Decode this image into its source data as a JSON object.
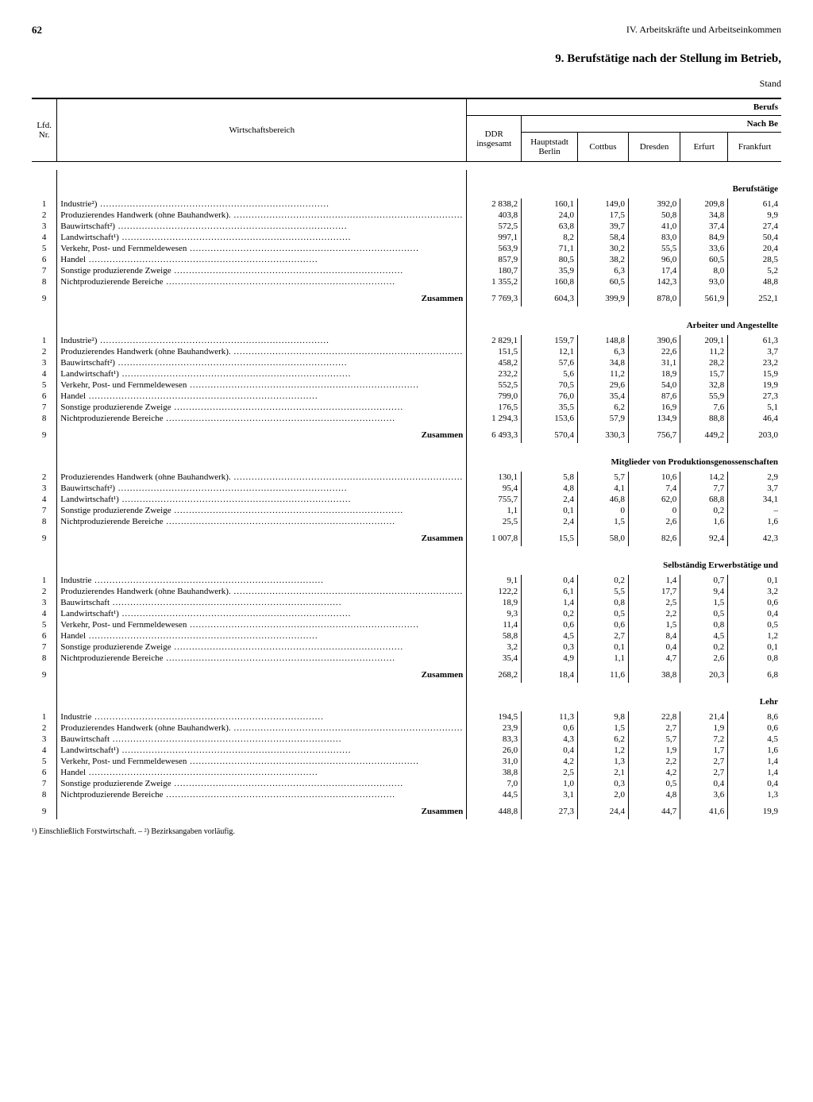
{
  "page_number": "62",
  "section_header": "IV. Arbeitskräfte und Arbeitseinkommen",
  "title": "9. Berufstätige nach der Stellung im Betrieb,",
  "stand": "Stand",
  "top_right_1": "Berufs",
  "top_right_2": "Nach Be",
  "col_headers": {
    "nr": "Lfd.\nNr.",
    "bereich": "Wirtschaftsbereich",
    "ddr": "DDR\ninsgesamt",
    "berlin": "Hauptstadt\nBerlin",
    "cottbus": "Cottbus",
    "dresden": "Dresden",
    "erfurt": "Erfurt",
    "frankfurt": "Frankfurt"
  },
  "row_labels": [
    "Industrie²)",
    "Produzierendes Handwerk (ohne Bauhandwerk).",
    "Bauwirtschaft²)",
    "Landwirtschaft¹)",
    "Verkehr, Post- und Fernmeldewesen",
    "Handel",
    "Sonstige produzierende Zweige",
    "Nichtproduzierende Bereiche"
  ],
  "row_labels_plain": [
    "Industrie",
    "Produzierendes Handwerk (ohne Bauhandwerk).",
    "Bauwirtschaft",
    "Landwirtschaft¹)",
    "Verkehr, Post- und Fernmeldewesen",
    "Handel",
    "Sonstige produzierende Zweige",
    "Nichtproduzierende Bereiche"
  ],
  "zusammen": "Zusammen",
  "sections": [
    {
      "title": "Berufstätige",
      "nrs": [
        "1",
        "2",
        "3",
        "4",
        "5",
        "6",
        "7",
        "8"
      ],
      "use_plain": false,
      "rows": [
        [
          "2 838,2",
          "160,1",
          "149,0",
          "392,0",
          "209,8",
          "61,4"
        ],
        [
          "403,8",
          "24,0",
          "17,5",
          "50,8",
          "34,8",
          "9,9"
        ],
        [
          "572,5",
          "63,8",
          "39,7",
          "41,0",
          "37,4",
          "27,4"
        ],
        [
          "997,1",
          "8,2",
          "58,4",
          "83,0",
          "84,9",
          "50,4"
        ],
        [
          "563,9",
          "71,1",
          "30,2",
          "55,5",
          "33,6",
          "20,4"
        ],
        [
          "857,9",
          "80,5",
          "38,2",
          "96,0",
          "60,5",
          "28,5"
        ],
        [
          "180,7",
          "35,9",
          "6,3",
          "17,4",
          "8,0",
          "5,2"
        ],
        [
          "1 355,2",
          "160,8",
          "60,5",
          "142,3",
          "93,0",
          "48,8"
        ]
      ],
      "sum": [
        "7 769,3",
        "604,3",
        "399,9",
        "878,0",
        "561,9",
        "252,1"
      ]
    },
    {
      "title": "Arbeiter und Angestellte",
      "nrs": [
        "1",
        "2",
        "3",
        "4",
        "5",
        "6",
        "7",
        "8"
      ],
      "use_plain": false,
      "rows": [
        [
          "2 829,1",
          "159,7",
          "148,8",
          "390,6",
          "209,1",
          "61,3"
        ],
        [
          "151,5",
          "12,1",
          "6,3",
          "22,6",
          "11,2",
          "3,7"
        ],
        [
          "458,2",
          "57,6",
          "34,8",
          "31,1",
          "28,2",
          "23,2"
        ],
        [
          "232,2",
          "5,6",
          "11,2",
          "18,9",
          "15,7",
          "15,9"
        ],
        [
          "552,5",
          "70,5",
          "29,6",
          "54,0",
          "32,8",
          "19,9"
        ],
        [
          "799,0",
          "76,0",
          "35,4",
          "87,6",
          "55,9",
          "27,3"
        ],
        [
          "176,5",
          "35,5",
          "6,2",
          "16,9",
          "7,6",
          "5,1"
        ],
        [
          "1 294,3",
          "153,6",
          "57,9",
          "134,9",
          "88,8",
          "46,4"
        ]
      ],
      "sum": [
        "6 493,3",
        "570,4",
        "330,3",
        "756,7",
        "449,2",
        "203,0"
      ]
    },
    {
      "title": "Mitglieder von Produktionsgenossenschaften",
      "nrs": [
        "2",
        "3",
        "4",
        "7",
        "8"
      ],
      "use_plain": false,
      "label_idx": [
        1,
        2,
        3,
        6,
        7
      ],
      "rows": [
        [
          "130,1",
          "5,8",
          "5,7",
          "10,6",
          "14,2",
          "2,9"
        ],
        [
          "95,4",
          "4,8",
          "4,1",
          "7,4",
          "7,7",
          "3,7"
        ],
        [
          "755,7",
          "2,4",
          "46,8",
          "62,0",
          "68,8",
          "34,1"
        ],
        [
          "1,1",
          "0,1",
          "0",
          "0",
          "0,2",
          "–"
        ],
        [
          "25,5",
          "2,4",
          "1,5",
          "2,6",
          "1,6",
          "1,6"
        ]
      ],
      "sum": [
        "1 007,8",
        "15,5",
        "58,0",
        "82,6",
        "92,4",
        "42,3"
      ]
    },
    {
      "title": "Selbständig Erwerbstätige und",
      "nrs": [
        "1",
        "2",
        "3",
        "4",
        "5",
        "6",
        "7",
        "8"
      ],
      "use_plain": true,
      "rows": [
        [
          "9,1",
          "0,4",
          "0,2",
          "1,4",
          "0,7",
          "0,1"
        ],
        [
          "122,2",
          "6,1",
          "5,5",
          "17,7",
          "9,4",
          "3,2"
        ],
        [
          "18,9",
          "1,4",
          "0,8",
          "2,5",
          "1,5",
          "0,6"
        ],
        [
          "9,3",
          "0,2",
          "0,5",
          "2,2",
          "0,5",
          "0,4"
        ],
        [
          "11,4",
          "0,6",
          "0,6",
          "1,5",
          "0,8",
          "0,5"
        ],
        [
          "58,8",
          "4,5",
          "2,7",
          "8,4",
          "4,5",
          "1,2"
        ],
        [
          "3,2",
          "0,3",
          "0,1",
          "0,4",
          "0,2",
          "0,1"
        ],
        [
          "35,4",
          "4,9",
          "1,1",
          "4,7",
          "2,6",
          "0,8"
        ]
      ],
      "sum": [
        "268,2",
        "18,4",
        "11,6",
        "38,8",
        "20,3",
        "6,8"
      ]
    },
    {
      "title": "Lehr",
      "nrs": [
        "1",
        "2",
        "3",
        "4",
        "5",
        "6",
        "7",
        "8"
      ],
      "use_plain": true,
      "rows": [
        [
          "194,5",
          "11,3",
          "9,8",
          "22,8",
          "21,4",
          "8,6"
        ],
        [
          "23,9",
          "0,6",
          "1,5",
          "2,7",
          "1,9",
          "0,6"
        ],
        [
          "83,3",
          "4,3",
          "6,2",
          "5,7",
          "7,2",
          "4,5"
        ],
        [
          "26,0",
          "0,4",
          "1,2",
          "1,9",
          "1,7",
          "1,6"
        ],
        [
          "31,0",
          "4,2",
          "1,3",
          "2,2",
          "2,7",
          "1,4"
        ],
        [
          "38,8",
          "2,5",
          "2,1",
          "4,2",
          "2,7",
          "1,4"
        ],
        [
          "7,0",
          "1,0",
          "0,3",
          "0,5",
          "0,4",
          "0,4"
        ],
        [
          "44,5",
          "3,1",
          "2,0",
          "4,8",
          "3,6",
          "1,3"
        ]
      ],
      "sum": [
        "448,8",
        "27,3",
        "24,4",
        "44,7",
        "41,6",
        "19,9"
      ]
    }
  ],
  "footnote": "¹) Einschließlich Forstwirtschaft. – ²) Bezirksangaben vorläufig."
}
